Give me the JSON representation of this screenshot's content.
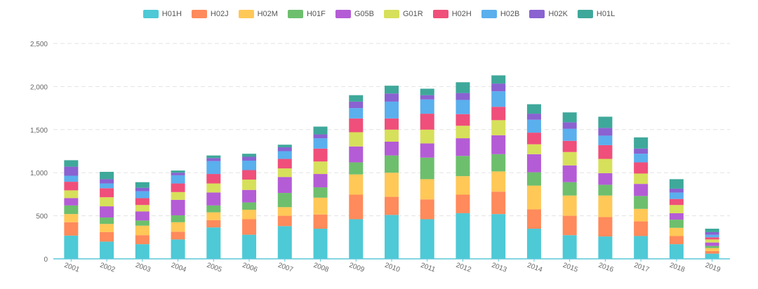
{
  "chart_data": {
    "type": "bar",
    "stacked": true,
    "categories": [
      "2001",
      "2002",
      "2003",
      "2004",
      "2005",
      "2006",
      "2007",
      "2008",
      "2009",
      "2010",
      "2011",
      "2012",
      "2013",
      "2014",
      "2015",
      "2016",
      "2017",
      "2018",
      "2019"
    ],
    "y_ticks": [
      "0",
      "500",
      "1,000",
      "1,500",
      "2,000",
      "2,500"
    ],
    "ylim": [
      0,
      2500
    ],
    "grid": true,
    "legend_position": "top-center",
    "series": [
      {
        "name": "H01H",
        "color": "#4ec9d6",
        "values": [
          270,
          200,
          170,
          225,
          365,
          280,
          380,
          350,
          460,
          510,
          460,
          530,
          520,
          350,
          275,
          260,
          265,
          170,
          60
        ]
      },
      {
        "name": "H02J",
        "color": "#ff8a5b",
        "values": [
          155,
          110,
          105,
          90,
          85,
          180,
          120,
          165,
          285,
          210,
          230,
          215,
          260,
          225,
          225,
          225,
          170,
          95,
          30
        ]
      },
      {
        "name": "H02M",
        "color": "#ffc857",
        "values": [
          95,
          95,
          110,
          110,
          90,
          110,
          100,
          195,
          235,
          280,
          235,
          215,
          235,
          275,
          235,
          250,
          145,
          95,
          35
        ]
      },
      {
        "name": "H01F",
        "color": "#6dbf6d",
        "values": [
          100,
          75,
          60,
          80,
          80,
          85,
          165,
          120,
          140,
          200,
          250,
          235,
          200,
          155,
          155,
          125,
          150,
          95,
          25
        ]
      },
      {
        "name": "G05B",
        "color": "#b45cd6",
        "values": [
          85,
          130,
          105,
          180,
          150,
          145,
          185,
          155,
          185,
          160,
          165,
          205,
          220,
          210,
          195,
          135,
          140,
          75,
          40
        ]
      },
      {
        "name": "G01R",
        "color": "#d7e05a",
        "values": [
          90,
          105,
          75,
          90,
          105,
          120,
          100,
          145,
          165,
          140,
          160,
          145,
          175,
          115,
          155,
          165,
          120,
          95,
          35
        ]
      },
      {
        "name": "H02H",
        "color": "#ef4f7a",
        "values": [
          100,
          105,
          80,
          100,
          110,
          110,
          110,
          150,
          160,
          130,
          185,
          135,
          155,
          135,
          130,
          160,
          130,
          70,
          25
        ]
      },
      {
        "name": "H02B",
        "color": "#5aafed",
        "values": [
          70,
          55,
          80,
          95,
          150,
          110,
          90,
          120,
          120,
          195,
          165,
          165,
          180,
          150,
          140,
          110,
          100,
          75,
          30
        ]
      },
      {
        "name": "H02K",
        "color": "#8a62d1",
        "values": [
          105,
          50,
          40,
          30,
          35,
          45,
          45,
          45,
          75,
          95,
          50,
          80,
          90,
          70,
          75,
          90,
          60,
          45,
          30
        ]
      },
      {
        "name": "H01L",
        "color": "#3ea89a",
        "values": [
          75,
          85,
          65,
          25,
          30,
          35,
          30,
          90,
          75,
          90,
          75,
          125,
          95,
          110,
          115,
          130,
          130,
          110,
          40
        ]
      }
    ]
  }
}
